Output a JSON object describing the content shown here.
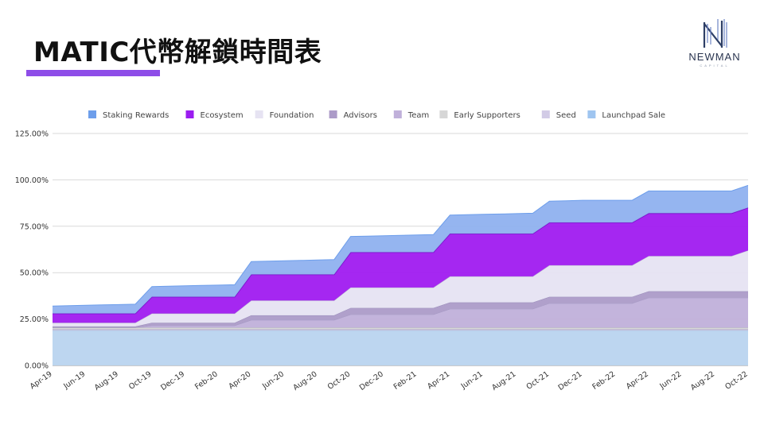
{
  "header": {
    "title": "MATIC代幣解鎖時間表",
    "logo_text": "NEWMAN",
    "logo_sub": "CAPITAL"
  },
  "chart_data": {
    "type": "area",
    "stacked": true,
    "title": "",
    "xlabel": "",
    "ylabel": "",
    "ylim": [
      0,
      125
    ],
    "yticks": [
      "0.00%",
      "25.00%",
      "50.00%",
      "75.00%",
      "100.00%",
      "125.00%"
    ],
    "grid": true,
    "legend_position": "top",
    "x": [
      "Apr-19",
      "May-19",
      "Jun-19",
      "Jul-19",
      "Aug-19",
      "Sep-19",
      "Oct-19",
      "Nov-19",
      "Dec-19",
      "Jan-20",
      "Feb-20",
      "Mar-20",
      "Apr-20",
      "May-20",
      "Jun-20",
      "Jul-20",
      "Aug-20",
      "Sep-20",
      "Oct-20",
      "Nov-20",
      "Dec-20",
      "Jan-21",
      "Feb-21",
      "Mar-21",
      "Apr-21",
      "May-21",
      "Jun-21",
      "Jul-21",
      "Aug-21",
      "Sep-21",
      "Oct-21",
      "Nov-21",
      "Dec-21",
      "Jan-22",
      "Feb-22",
      "Mar-22",
      "Apr-22",
      "May-22",
      "Jun-22",
      "Jul-22",
      "Aug-22",
      "Sep-22",
      "Oct-22"
    ],
    "x_tick_labels": [
      "Apr-19",
      "Jun-19",
      "Aug-19",
      "Oct-19",
      "Dec-19",
      "Feb-20",
      "Apr-20",
      "Jun-20",
      "Aug-20",
      "Oct-20",
      "Dec-20",
      "Feb-21",
      "Apr-21",
      "Jun-21",
      "Aug-21",
      "Oct-21",
      "Dec-21",
      "Feb-22",
      "Apr-22",
      "Jun-22",
      "Aug-22",
      "Oct-22"
    ],
    "series_bottom_to_top": [
      {
        "name": "Launchpad Sale",
        "color": "#b9d4ef",
        "values": [
          19,
          19,
          19,
          19,
          19,
          19,
          19,
          19,
          19,
          19,
          19,
          19,
          19,
          19,
          19,
          19,
          19,
          19,
          19,
          19,
          19,
          19,
          19,
          19,
          19,
          19,
          19,
          19,
          19,
          19,
          19,
          19,
          19,
          19,
          19,
          19,
          19,
          19,
          19,
          19,
          19,
          19,
          19
        ]
      },
      {
        "name": "Seed",
        "color": "#d2cbe6",
        "values": [
          0.5,
          0.5,
          0.5,
          0.5,
          0.5,
          0.5,
          0.5,
          0.5,
          0.5,
          0.5,
          0.5,
          0.5,
          0.5,
          0.5,
          0.5,
          0.5,
          0.5,
          0.5,
          0.5,
          0.5,
          0.5,
          0.5,
          0.5,
          0.5,
          0.5,
          0.5,
          0.5,
          0.5,
          0.5,
          0.5,
          0.5,
          0.5,
          0.5,
          0.5,
          0.5,
          0.5,
          0.5,
          0.5,
          0.5,
          0.5,
          0.5,
          0.5,
          0.5
        ]
      },
      {
        "name": "Early Supporters",
        "color": "#d6d6d6",
        "values": [
          1,
          1,
          1,
          1,
          1,
          1,
          1,
          1,
          1,
          1,
          1,
          1,
          1,
          1,
          1,
          1,
          1,
          1,
          1,
          1,
          1,
          1,
          1,
          1,
          1,
          1,
          1,
          1,
          1,
          1,
          1,
          1,
          1,
          1,
          1,
          1,
          1,
          1,
          1,
          1,
          1,
          1,
          1
        ]
      },
      {
        "name": "Team",
        "color": "#c0b0da",
        "values": [
          0,
          0,
          0,
          0,
          0,
          0,
          1,
          1,
          1,
          1,
          1,
          1,
          4,
          4,
          4,
          4,
          4,
          4,
          7,
          7,
          7,
          7,
          7,
          7,
          10,
          10,
          10,
          10,
          10,
          10,
          13,
          13,
          13,
          13,
          13,
          13,
          16,
          16,
          16,
          16,
          16,
          16,
          16
        ]
      },
      {
        "name": "Advisors",
        "color": "#ac9bc8",
        "values": [
          0.5,
          0.5,
          0.5,
          0.5,
          0.5,
          0.5,
          1.5,
          1.5,
          1.5,
          1.5,
          1.5,
          1.5,
          2.5,
          2.5,
          2.5,
          2.5,
          2.5,
          2.5,
          3.5,
          3.5,
          3.5,
          3.5,
          3.5,
          3.5,
          3.5,
          3.5,
          3.5,
          3.5,
          3.5,
          3.5,
          3.5,
          3.5,
          3.5,
          3.5,
          3.5,
          3.5,
          3.5,
          3.5,
          3.5,
          3.5,
          3.5,
          3.5,
          3.5
        ]
      },
      {
        "name": "Foundation",
        "color": "#e6e3f2",
        "values": [
          2,
          2,
          2,
          2,
          2,
          2,
          5,
          5,
          5,
          5,
          5,
          5,
          8,
          8,
          8,
          8,
          8,
          8,
          11,
          11,
          11,
          11,
          11,
          11,
          14,
          14,
          14,
          14,
          14,
          14,
          17,
          17,
          17,
          17,
          17,
          17,
          19,
          19,
          19,
          19,
          19,
          19,
          22
        ]
      },
      {
        "name": "Ecosystem",
        "color": "#a01bf0",
        "values": [
          5,
          5,
          5,
          5,
          5,
          5,
          9,
          9,
          9,
          9,
          9,
          9,
          14,
          14,
          14,
          14,
          14,
          14,
          19,
          19,
          19,
          19,
          19,
          19,
          23,
          23,
          23,
          23,
          23,
          23,
          23,
          23,
          23,
          23,
          23,
          23,
          23,
          23,
          23,
          23,
          23,
          23,
          23
        ]
      },
      {
        "name": "Staking Rewards",
        "color": "#8fb1ef",
        "values": [
          4,
          4.2,
          4.4,
          4.6,
          4.8,
          5,
          5.5,
          5.7,
          5.9,
          6.1,
          6.3,
          6.5,
          7,
          7.2,
          7.4,
          7.6,
          7.8,
          8,
          8.5,
          8.7,
          8.9,
          9.1,
          9.3,
          9.5,
          10,
          10.2,
          10.4,
          10.6,
          10.8,
          11,
          11.5,
          11.7,
          12,
          12,
          12,
          12,
          12,
          12,
          12,
          12,
          12,
          12,
          12
        ]
      }
    ],
    "legend_order": [
      "Staking Rewards",
      "Ecosystem",
      "Foundation",
      "Advisors",
      "Team",
      "Early Supporters",
      "Seed",
      "Launchpad Sale"
    ],
    "legend_colors": {
      "Staking Rewards": "#6d9eeb",
      "Ecosystem": "#9b1cf0",
      "Foundation": "#e6e3f2",
      "Advisors": "#ac9bc8",
      "Team": "#c0b0da",
      "Early Supporters": "#d6d6d6",
      "Seed": "#d2cbe6",
      "Launchpad Sale": "#9fc5f0"
    }
  }
}
